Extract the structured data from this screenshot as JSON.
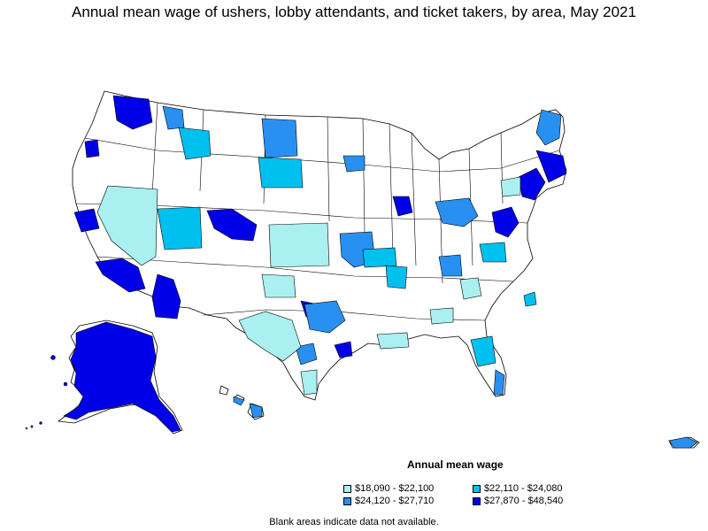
{
  "title": "Annual mean wage of ushers, lobby attendants, and ticket takers, by area, May 2021",
  "legend": {
    "title": "Annual mean wage",
    "items": [
      {
        "label": "$18,090 - $22,100",
        "color": "#aaf0f0"
      },
      {
        "label": "$22,110 - $24,080",
        "color": "#00c0f0"
      },
      {
        "label": "$24,120 - $27,710",
        "color": "#2890f0"
      },
      {
        "label": "$27,870 - $48,540",
        "color": "#0000e8"
      }
    ]
  },
  "footnote": "Blank areas indicate data not available.",
  "colors": {
    "background": "#ffffff",
    "blank_area": "#ffffff",
    "border": "#000000"
  }
}
